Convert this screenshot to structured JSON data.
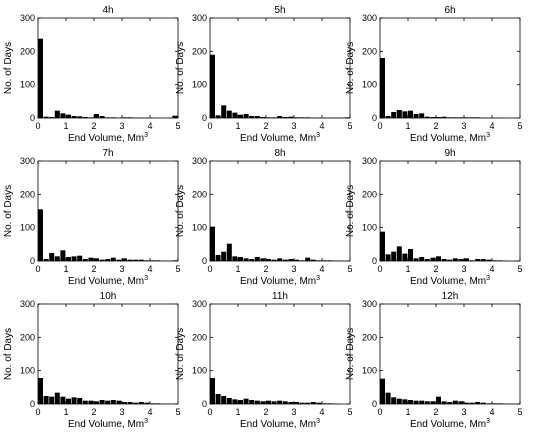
{
  "chart_data": [
    {
      "type": "bar",
      "title": "4h",
      "xlabel": "End Volume, Mm",
      "xlabel_sup": "3",
      "ylabel": "No. of Days",
      "xlim": [
        0,
        5
      ],
      "ylim": [
        0,
        300
      ],
      "xticks": [
        0,
        1,
        2,
        3,
        4,
        5
      ],
      "yticks": [
        0,
        100,
        200,
        300
      ],
      "bin_width": 0.2,
      "x": [
        0.1,
        0.3,
        0.5,
        0.7,
        0.9,
        1.1,
        1.3,
        1.5,
        1.7,
        1.9,
        2.1,
        2.3,
        2.5,
        2.7,
        2.9,
        3.1,
        3.3,
        3.5,
        3.7,
        3.9,
        4.1,
        4.3,
        4.5,
        4.7,
        4.9
      ],
      "values": [
        238,
        4,
        3,
        22,
        14,
        10,
        6,
        5,
        3,
        2,
        12,
        6,
        2,
        2,
        1,
        2,
        2,
        1,
        1,
        1,
        1,
        0,
        0,
        1,
        7
      ]
    },
    {
      "type": "bar",
      "title": "5h",
      "xlabel": "End Volume, Mm",
      "xlabel_sup": "3",
      "ylabel": "No. of Days",
      "xlim": [
        0,
        5
      ],
      "ylim": [
        0,
        300
      ],
      "xticks": [
        0,
        1,
        2,
        3,
        4,
        5
      ],
      "yticks": [
        0,
        100,
        200,
        300
      ],
      "bin_width": 0.2,
      "x": [
        0.1,
        0.3,
        0.5,
        0.7,
        0.9,
        1.1,
        1.3,
        1.5,
        1.7,
        1.9,
        2.1,
        2.3,
        2.5,
        2.7,
        2.9,
        3.1,
        3.3,
        3.5,
        3.7,
        3.9,
        4.1,
        4.3,
        4.5,
        4.7,
        4.9
      ],
      "values": [
        190,
        8,
        38,
        22,
        16,
        10,
        12,
        6,
        6,
        3,
        2,
        2,
        6,
        3,
        4,
        2,
        2,
        2,
        1,
        1,
        1,
        1,
        1,
        1,
        2
      ]
    },
    {
      "type": "bar",
      "title": "6h",
      "xlabel": "End Volume, Mm",
      "xlabel_sup": "3",
      "ylabel": "No. of Days",
      "xlim": [
        0,
        5
      ],
      "ylim": [
        0,
        300
      ],
      "xticks": [
        0,
        1,
        2,
        3,
        4,
        5
      ],
      "yticks": [
        0,
        100,
        200,
        300
      ],
      "bin_width": 0.2,
      "x": [
        0.1,
        0.3,
        0.5,
        0.7,
        0.9,
        1.1,
        1.3,
        1.5,
        1.7,
        1.9,
        2.1,
        2.3,
        2.5,
        2.7,
        2.9,
        3.1,
        3.3,
        3.5,
        3.7,
        3.9,
        4.1,
        4.3,
        4.5,
        4.7,
        4.9
      ],
      "values": [
        180,
        6,
        18,
        24,
        20,
        22,
        12,
        14,
        4,
        3,
        3,
        4,
        2,
        2,
        2,
        2,
        2,
        2,
        1,
        1,
        1,
        1,
        0,
        0,
        1
      ]
    },
    {
      "type": "bar",
      "title": "7h",
      "xlabel": "End Volume, Mm",
      "xlabel_sup": "3",
      "ylabel": "No. of Days",
      "xlim": [
        0,
        5
      ],
      "ylim": [
        0,
        300
      ],
      "xticks": [
        0,
        1,
        2,
        3,
        4,
        5
      ],
      "yticks": [
        0,
        100,
        200,
        300
      ],
      "bin_width": 0.2,
      "x": [
        0.1,
        0.3,
        0.5,
        0.7,
        0.9,
        1.1,
        1.3,
        1.5,
        1.7,
        1.9,
        2.1,
        2.3,
        2.5,
        2.7,
        2.9,
        3.1,
        3.3,
        3.5,
        3.7,
        3.9,
        4.1,
        4.3,
        4.5,
        4.7,
        4.9
      ],
      "values": [
        155,
        6,
        24,
        14,
        32,
        12,
        14,
        16,
        6,
        10,
        8,
        4,
        6,
        10,
        4,
        8,
        4,
        4,
        4,
        2,
        2,
        2,
        1,
        1,
        2
      ]
    },
    {
      "type": "bar",
      "title": "8h",
      "xlabel": "End Volume, Mm",
      "xlabel_sup": "3",
      "ylabel": "No. of Days",
      "xlim": [
        0,
        5
      ],
      "ylim": [
        0,
        300
      ],
      "xticks": [
        0,
        1,
        2,
        3,
        4,
        5
      ],
      "yticks": [
        0,
        100,
        200,
        300
      ],
      "bin_width": 0.2,
      "x": [
        0.1,
        0.3,
        0.5,
        0.7,
        0.9,
        1.1,
        1.3,
        1.5,
        1.7,
        1.9,
        2.1,
        2.3,
        2.5,
        2.7,
        2.9,
        3.1,
        3.3,
        3.5,
        3.7,
        3.9,
        4.1,
        4.3,
        4.5,
        4.7,
        4.9
      ],
      "values": [
        103,
        18,
        28,
        52,
        14,
        12,
        8,
        6,
        12,
        8,
        6,
        4,
        8,
        4,
        6,
        4,
        2,
        10,
        4,
        2,
        2,
        2,
        1,
        1,
        1
      ]
    },
    {
      "type": "bar",
      "title": "9h",
      "xlabel": "End Volume, Mm",
      "xlabel_sup": "3",
      "ylabel": "No. of Days",
      "xlim": [
        0,
        5
      ],
      "ylim": [
        0,
        300
      ],
      "xticks": [
        0,
        1,
        2,
        3,
        4,
        5
      ],
      "yticks": [
        0,
        100,
        200,
        300
      ],
      "bin_width": 0.2,
      "x": [
        0.1,
        0.3,
        0.5,
        0.7,
        0.9,
        1.1,
        1.3,
        1.5,
        1.7,
        1.9,
        2.1,
        2.3,
        2.5,
        2.7,
        2.9,
        3.1,
        3.3,
        3.5,
        3.7,
        3.9,
        4.1,
        4.3,
        4.5,
        4.7,
        4.9
      ],
      "values": [
        88,
        20,
        28,
        44,
        22,
        36,
        8,
        12,
        6,
        10,
        14,
        6,
        4,
        8,
        6,
        8,
        2,
        6,
        6,
        4,
        2,
        2,
        1,
        0,
        1
      ]
    },
    {
      "type": "bar",
      "title": "10h",
      "xlabel": "End Volume, Mm",
      "xlabel_sup": "3",
      "ylabel": "No. of Days",
      "xlim": [
        0,
        5
      ],
      "ylim": [
        0,
        300
      ],
      "xticks": [
        0,
        1,
        2,
        3,
        4,
        5
      ],
      "yticks": [
        0,
        100,
        200,
        300
      ],
      "bin_width": 0.2,
      "x": [
        0.1,
        0.3,
        0.5,
        0.7,
        0.9,
        1.1,
        1.3,
        1.5,
        1.7,
        1.9,
        2.1,
        2.3,
        2.5,
        2.7,
        2.9,
        3.1,
        3.3,
        3.5,
        3.7,
        3.9,
        4.1,
        4.3,
        4.5,
        4.7,
        4.9
      ],
      "values": [
        78,
        24,
        22,
        34,
        22,
        16,
        20,
        18,
        10,
        10,
        8,
        12,
        10,
        12,
        10,
        6,
        6,
        4,
        6,
        4,
        2,
        2,
        1,
        1,
        1
      ]
    },
    {
      "type": "bar",
      "title": "11h",
      "xlabel": "End Volume, Mm",
      "xlabel_sup": "3",
      "ylabel": "No. of Days",
      "xlim": [
        0,
        5
      ],
      "ylim": [
        0,
        300
      ],
      "xticks": [
        0,
        1,
        2,
        3,
        4,
        5
      ],
      "yticks": [
        0,
        100,
        200,
        300
      ],
      "bin_width": 0.2,
      "x": [
        0.1,
        0.3,
        0.5,
        0.7,
        0.9,
        1.1,
        1.3,
        1.5,
        1.7,
        1.9,
        2.1,
        2.3,
        2.5,
        2.7,
        2.9,
        3.1,
        3.3,
        3.5,
        3.7,
        3.9,
        4.1,
        4.3,
        4.5,
        4.7,
        4.9
      ],
      "values": [
        78,
        30,
        24,
        18,
        14,
        12,
        16,
        12,
        10,
        8,
        10,
        8,
        10,
        8,
        6,
        6,
        4,
        4,
        6,
        4,
        2,
        2,
        1,
        0,
        0
      ]
    },
    {
      "type": "bar",
      "title": "12h",
      "xlabel": "End Volume, Mm",
      "xlabel_sup": "3",
      "ylabel": "No. of Days",
      "xlim": [
        0,
        5
      ],
      "ylim": [
        0,
        300
      ],
      "xticks": [
        0,
        1,
        2,
        3,
        4,
        5
      ],
      "yticks": [
        0,
        100,
        200,
        300
      ],
      "bin_width": 0.2,
      "x": [
        0.1,
        0.3,
        0.5,
        0.7,
        0.9,
        1.1,
        1.3,
        1.5,
        1.7,
        1.9,
        2.1,
        2.3,
        2.5,
        2.7,
        2.9,
        3.1,
        3.3,
        3.5,
        3.7,
        3.9,
        4.1,
        4.3,
        4.5,
        4.7,
        4.9
      ],
      "values": [
        76,
        34,
        20,
        16,
        14,
        12,
        10,
        10,
        8,
        8,
        22,
        8,
        6,
        10,
        8,
        4,
        4,
        6,
        4,
        2,
        2,
        2,
        1,
        1,
        1
      ]
    }
  ],
  "colors": {
    "bar": "#000000",
    "axis": "#000000",
    "background": "#ffffff"
  }
}
